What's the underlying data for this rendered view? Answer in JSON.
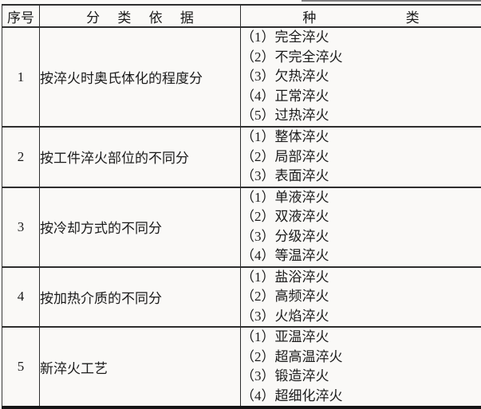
{
  "table": {
    "headers": {
      "no": "序号",
      "basis": "分 类 依 据",
      "type": "种 类"
    },
    "rows": [
      {
        "no": "1",
        "basis": "按淬火时奥氏体化的程度分",
        "types": [
          "（1）完全淬火",
          "（2）不完全淬火",
          "（3）欠热淬火",
          "（4）正常淬火",
          "（5）过热淬火"
        ]
      },
      {
        "no": "2",
        "basis": "按工件淬火部位的不同分",
        "types": [
          "（1）整体淬火",
          "（2）局部淬火",
          "（3）表面淬火"
        ]
      },
      {
        "no": "3",
        "basis": "按冷却方式的不同分",
        "types": [
          "（1）单液淬火",
          "（2）双液淬火",
          "（3）分级淬火",
          "（4）等温淬火"
        ]
      },
      {
        "no": "4",
        "basis": "按加热介质的不同分",
        "types": [
          "（1）盐浴淬火",
          "（2）高频淬火",
          "（3）火焰淬火"
        ]
      },
      {
        "no": "5",
        "basis": "新淬火工艺",
        "types": [
          "（1）亚温淬火",
          "（2）超高温淬火",
          "（3）锻造淬火",
          "（4）超细化淬火"
        ]
      }
    ]
  },
  "colors": {
    "background": "#faf9f7",
    "border": "#2e2e2e",
    "text": "#1b1b1b"
  }
}
